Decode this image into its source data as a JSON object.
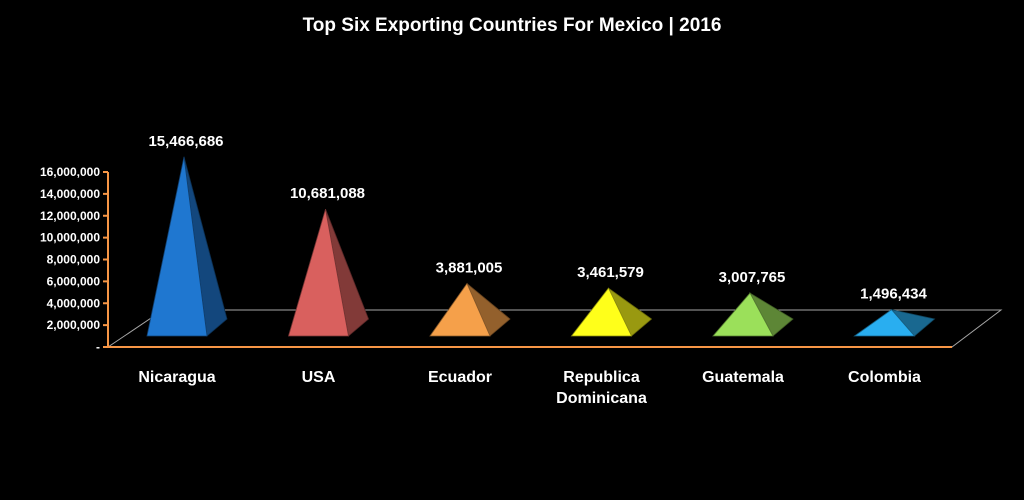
{
  "chart_data": {
    "type": "bar",
    "title": "Top Six Exporting Countries  For Mexico | 2016",
    "categories": [
      [
        "Nicaragua"
      ],
      [
        "USA"
      ],
      [
        "Ecuador"
      ],
      [
        "Republica",
        "Dominicana"
      ],
      [
        "Guatemala"
      ],
      [
        "Colombia"
      ]
    ],
    "values": [
      15466686,
      10681088,
      3881005,
      3461579,
      3007765,
      1496434
    ],
    "data_labels": [
      "15,466,686",
      "10,681,088",
      "3,881,005",
      "3,461,579",
      "3,007,765",
      "1,496,434"
    ],
    "y_ticks": [
      "-",
      "2,000,000",
      "4,000,000",
      "6,000,000",
      "8,000,000",
      "10,000,000",
      "12,000,000",
      "14,000,000",
      "16,000,000"
    ],
    "ylim": [
      0,
      16000000
    ],
    "xlabel": "",
    "ylabel": "",
    "grid": false,
    "legend": "none",
    "colors": [
      "#1f77d0",
      "#d9605e",
      "#f5a04a",
      "#ffff1a",
      "#9be05a",
      "#29aef0"
    ],
    "axis_color": "#f79646"
  }
}
